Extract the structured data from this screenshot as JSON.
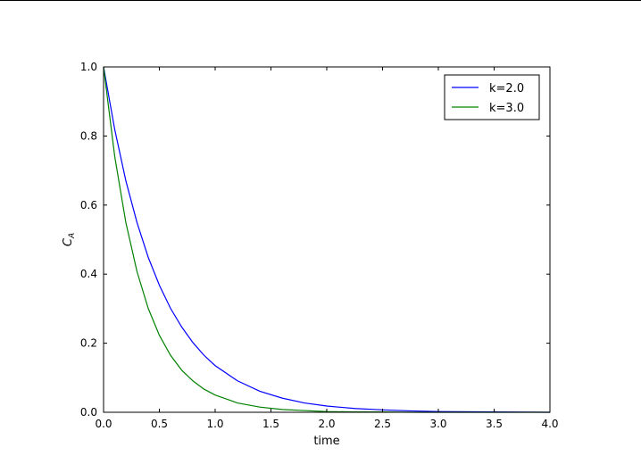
{
  "chart_data": {
    "type": "line",
    "title": "",
    "xlabel": "time",
    "ylabel": "C",
    "ylabel_subscript": "A",
    "xlim": [
      0.0,
      4.0
    ],
    "ylim": [
      0.0,
      1.0
    ],
    "x_ticks": [
      "0.0",
      "0.5",
      "1.0",
      "1.5",
      "2.0",
      "2.5",
      "3.0",
      "3.5",
      "4.0"
    ],
    "y_ticks": [
      "0.0",
      "0.2",
      "0.4",
      "0.6",
      "0.8",
      "1.0"
    ],
    "grid": false,
    "legend_position": "top-right",
    "x": [
      0.0,
      0.1,
      0.2,
      0.3,
      0.4,
      0.5,
      0.6,
      0.7,
      0.8,
      0.9,
      1.0,
      1.2,
      1.4,
      1.6,
      1.8,
      2.0,
      2.25,
      2.5,
      2.75,
      3.0,
      3.5,
      4.0
    ],
    "series": [
      {
        "name": "k=2.0",
        "color": "#0000ff",
        "values": [
          1.0,
          0.819,
          0.67,
          0.549,
          0.449,
          0.368,
          0.301,
          0.247,
          0.202,
          0.165,
          0.135,
          0.091,
          0.061,
          0.041,
          0.027,
          0.018,
          0.011,
          0.007,
          0.004,
          0.002,
          0.001,
          0.0
        ]
      },
      {
        "name": "k=3.0",
        "color": "#008000",
        "values": [
          1.0,
          0.741,
          0.549,
          0.407,
          0.301,
          0.223,
          0.165,
          0.122,
          0.091,
          0.067,
          0.05,
          0.027,
          0.015,
          0.008,
          0.005,
          0.002,
          0.001,
          0.001,
          0.0,
          0.0,
          0.0,
          0.0
        ]
      }
    ]
  }
}
